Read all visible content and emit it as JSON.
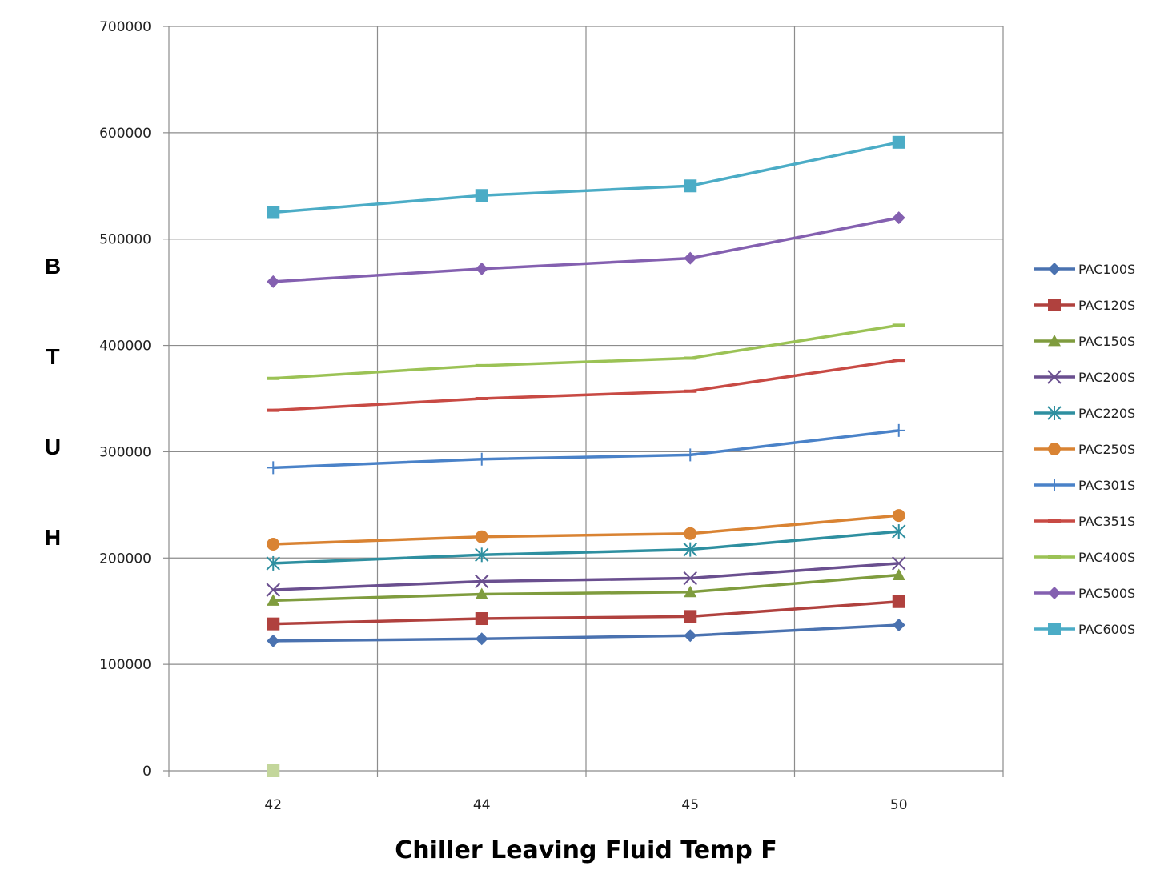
{
  "chart_data": {
    "type": "line",
    "xlabel": "Chiller Leaving Fluid Temp F",
    "ylabel_letters": [
      "B",
      "T",
      "U",
      "H"
    ],
    "categories": [
      "42",
      "44",
      "45",
      "50"
    ],
    "ylim": [
      0,
      700000
    ],
    "yticks": [
      "0",
      "100000",
      "200000",
      "300000",
      "400000",
      "500000",
      "600000",
      "700000"
    ],
    "grid": true,
    "legend_position": "right",
    "series": [
      {
        "name": "PAC100S",
        "color": "#4a72b0",
        "marker": "diamond",
        "values": [
          122000,
          124000,
          127000,
          137000
        ]
      },
      {
        "name": "PAC120S",
        "color": "#b0413e",
        "marker": "square",
        "values": [
          138000,
          143000,
          145000,
          159000
        ]
      },
      {
        "name": "PAC150S",
        "color": "#7f9c3e",
        "marker": "triangle",
        "values": [
          160000,
          166000,
          168000,
          184000
        ]
      },
      {
        "name": "PAC200S",
        "color": "#6a4f8f",
        "marker": "x",
        "values": [
          170000,
          178000,
          181000,
          195000
        ]
      },
      {
        "name": "PAC220S",
        "color": "#2e8fa0",
        "marker": "star",
        "values": [
          195000,
          203000,
          208000,
          225000
        ]
      },
      {
        "name": "PAC250S",
        "color": "#d98333",
        "marker": "circle",
        "values": [
          213000,
          220000,
          223000,
          240000
        ]
      },
      {
        "name": "PAC301S",
        "color": "#4a82c8",
        "marker": "plus",
        "values": [
          285000,
          293000,
          297000,
          320000
        ]
      },
      {
        "name": "PAC351S",
        "color": "#c84a44",
        "marker": "dash",
        "values": [
          339000,
          350000,
          357000,
          386000
        ]
      },
      {
        "name": "PAC400S",
        "color": "#9bc255",
        "marker": "dash",
        "values": [
          369000,
          381000,
          388000,
          419000
        ]
      },
      {
        "name": "PAC500S",
        "color": "#8460b0",
        "marker": "diamond",
        "values": [
          460000,
          472000,
          482000,
          520000
        ]
      },
      {
        "name": "PAC600S",
        "color": "#4bacc6",
        "marker": "square",
        "values": [
          525000,
          541000,
          550000,
          591000
        ]
      }
    ],
    "extra_points": [
      {
        "x": "42",
        "y": 0,
        "color": "#c3d69b"
      }
    ]
  }
}
